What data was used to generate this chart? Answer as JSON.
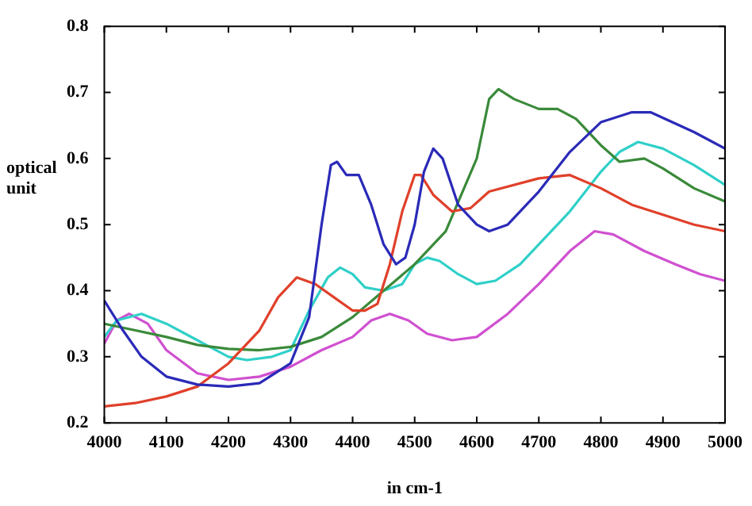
{
  "chart_data": {
    "type": "line",
    "xlabel": "in cm-1",
    "ylabel": "optical unit",
    "xlim": [
      4000,
      5000
    ],
    "xticks": [
      4000,
      4100,
      4200,
      4300,
      4400,
      4500,
      4600,
      4700,
      4800,
      4900,
      5000
    ],
    "ylim": [
      0.2,
      0.8
    ],
    "yticks": [
      0.2,
      0.3,
      0.4,
      0.5,
      0.6,
      0.7,
      0.8
    ],
    "grid": false,
    "legend": false,
    "series": [
      {
        "color": "#2a2ab8",
        "x": [
          4000,
          4030,
          4060,
          4100,
          4150,
          4200,
          4250,
          4300,
          4330,
          4350,
          4365,
          4375,
          4390,
          4410,
          4430,
          4450,
          4470,
          4485,
          4500,
          4515,
          4530,
          4545,
          4570,
          4600,
          4620,
          4650,
          4700,
          4750,
          4800,
          4850,
          4880,
          4950,
          5000
        ],
        "values": [
          0.385,
          0.34,
          0.3,
          0.27,
          0.258,
          0.255,
          0.26,
          0.29,
          0.36,
          0.5,
          0.59,
          0.595,
          0.575,
          0.575,
          0.53,
          0.47,
          0.44,
          0.45,
          0.5,
          0.58,
          0.615,
          0.6,
          0.53,
          0.5,
          0.49,
          0.5,
          0.55,
          0.61,
          0.655,
          0.67,
          0.67,
          0.64,
          0.615
        ]
      },
      {
        "color": "#e0402a",
        "x": [
          4000,
          4050,
          4100,
          4150,
          4200,
          4250,
          4280,
          4310,
          4340,
          4370,
          4400,
          4420,
          4440,
          4460,
          4480,
          4500,
          4510,
          4530,
          4560,
          4590,
          4620,
          4700,
          4750,
          4800,
          4850,
          4900,
          4950,
          5000
        ],
        "values": [
          0.225,
          0.23,
          0.24,
          0.255,
          0.29,
          0.34,
          0.39,
          0.42,
          0.41,
          0.39,
          0.37,
          0.37,
          0.38,
          0.44,
          0.52,
          0.575,
          0.575,
          0.545,
          0.52,
          0.525,
          0.55,
          0.57,
          0.575,
          0.555,
          0.53,
          0.515,
          0.5,
          0.49
        ]
      },
      {
        "color": "#3a8a3a",
        "x": [
          4000,
          4050,
          4100,
          4150,
          4200,
          4250,
          4300,
          4350,
          4400,
          4450,
          4500,
          4550,
          4600,
          4620,
          4635,
          4660,
          4700,
          4730,
          4760,
          4800,
          4830,
          4870,
          4900,
          4950,
          5000
        ],
        "values": [
          0.35,
          0.34,
          0.33,
          0.318,
          0.312,
          0.31,
          0.315,
          0.33,
          0.36,
          0.4,
          0.44,
          0.49,
          0.6,
          0.69,
          0.705,
          0.69,
          0.675,
          0.675,
          0.66,
          0.62,
          0.595,
          0.6,
          0.585,
          0.555,
          0.535
        ]
      },
      {
        "color": "#30d0c8",
        "x": [
          4000,
          4020,
          4060,
          4100,
          4150,
          4200,
          4230,
          4270,
          4300,
          4330,
          4360,
          4380,
          4400,
          4420,
          4450,
          4480,
          4500,
          4520,
          4540,
          4570,
          4600,
          4630,
          4670,
          4700,
          4750,
          4800,
          4830,
          4860,
          4900,
          4950,
          5000
        ],
        "values": [
          0.33,
          0.355,
          0.365,
          0.35,
          0.325,
          0.3,
          0.295,
          0.3,
          0.31,
          0.37,
          0.42,
          0.435,
          0.425,
          0.405,
          0.4,
          0.41,
          0.44,
          0.45,
          0.445,
          0.425,
          0.41,
          0.415,
          0.44,
          0.47,
          0.52,
          0.58,
          0.61,
          0.625,
          0.615,
          0.59,
          0.56
        ]
      },
      {
        "color": "#d050d0",
        "x": [
          4000,
          4020,
          4040,
          4070,
          4100,
          4150,
          4200,
          4250,
          4300,
          4350,
          4400,
          4430,
          4460,
          4490,
          4520,
          4560,
          4600,
          4650,
          4700,
          4750,
          4790,
          4820,
          4870,
          4920,
          4960,
          5000
        ],
        "values": [
          0.32,
          0.355,
          0.365,
          0.35,
          0.31,
          0.275,
          0.265,
          0.27,
          0.285,
          0.31,
          0.33,
          0.355,
          0.365,
          0.355,
          0.335,
          0.325,
          0.33,
          0.365,
          0.41,
          0.46,
          0.49,
          0.485,
          0.46,
          0.44,
          0.425,
          0.415
        ]
      }
    ]
  }
}
